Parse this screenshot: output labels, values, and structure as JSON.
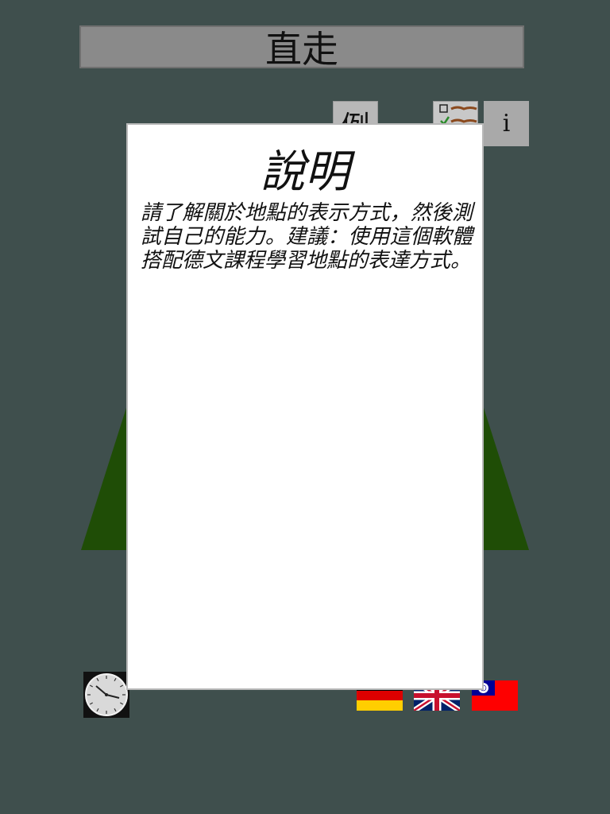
{
  "header": {
    "title": "直走"
  },
  "toolbar": {
    "example_label": "例",
    "checklist_icon": "checklist-icon",
    "info_label": "i"
  },
  "scene": {
    "road_color": "#1f4d06"
  },
  "bottom": {
    "clock_icon": "clock-icon",
    "languages": [
      "german-flag-icon",
      "uk-flag-icon",
      "taiwan-flag-icon"
    ]
  },
  "dialog": {
    "title": "說明",
    "body": "請了解關於地點的表示方式，然後測試自己的能力。建議：使用這個軟體搭配德文課程學習地點的表達方式。"
  },
  "colors": {
    "background": "#3f4f4d",
    "title_bar": "#8a8a8a",
    "button": "#a9a9a9",
    "modal": "#ffffff"
  }
}
